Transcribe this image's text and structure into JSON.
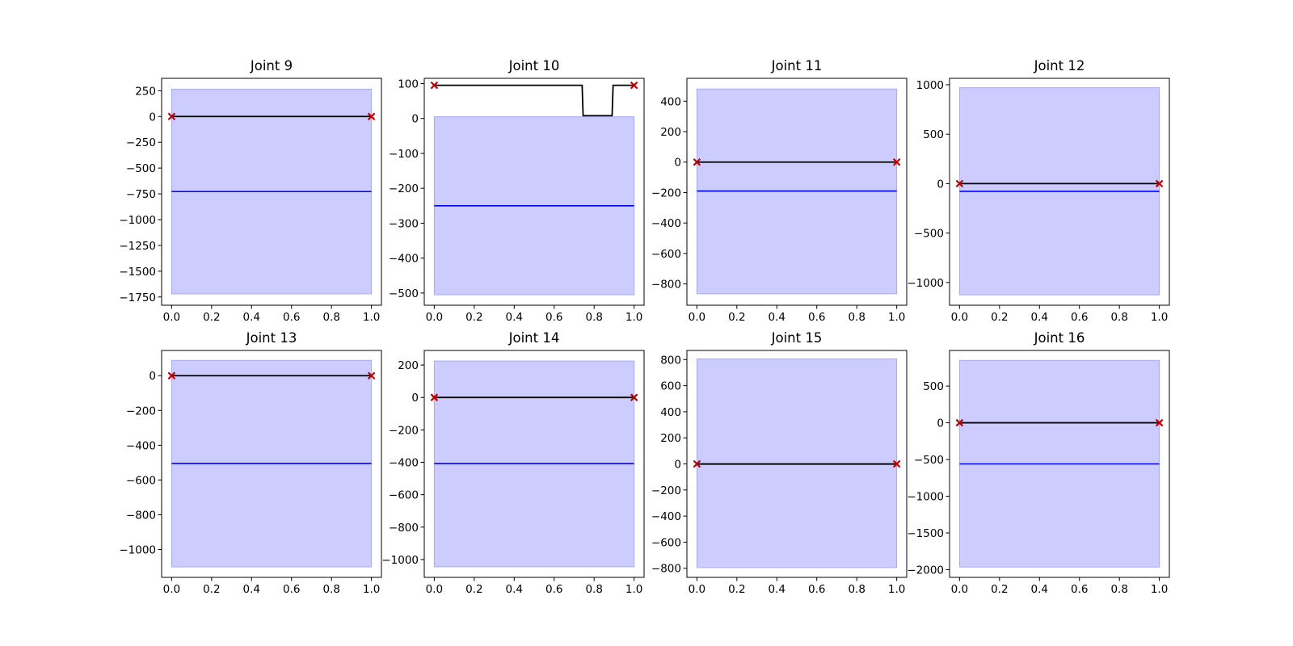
{
  "colors": {
    "band_fill": "#ccccff",
    "band_edge": "#aaaaf5",
    "mean_line": "#0000ff",
    "trajectory_line": "#000000",
    "endpoint_marker": "#d62728",
    "endpoint_marker_edge": "#c00000"
  },
  "chart_data": [
    {
      "type": "line",
      "title": "Joint 9",
      "xlim": [
        -0.05,
        1.05
      ],
      "ylim": [
        -1830,
        370
      ],
      "xticks": [
        0.0,
        0.2,
        0.4,
        0.6,
        0.8,
        1.0
      ],
      "xtick_labels": [
        "0.0",
        "0.2",
        "0.4",
        "0.6",
        "0.8",
        "1.0"
      ],
      "yticks": [
        250,
        0,
        -250,
        -500,
        -750,
        -1000,
        -1250,
        -1500,
        -1750
      ],
      "ytick_labels": [
        "250",
        "0",
        "−250",
        "−500",
        "−750",
        "−1000",
        "−1250",
        "−1500",
        "−1750"
      ],
      "band": {
        "x": [
          0,
          1
        ],
        "lower": -1720,
        "upper": 265
      },
      "mean": {
        "x": [
          0,
          1
        ],
        "y": [
          -728,
          -728
        ]
      },
      "trajectory": {
        "x": [
          0,
          1
        ],
        "y": [
          0,
          0
        ]
      },
      "endpoints": {
        "x": [
          0,
          1
        ],
        "y": [
          0,
          0
        ]
      }
    },
    {
      "type": "line",
      "title": "Joint 10",
      "xlim": [
        -0.05,
        1.05
      ],
      "ylim": [
        -535,
        115
      ],
      "xticks": [
        0.0,
        0.2,
        0.4,
        0.6,
        0.8,
        1.0
      ],
      "xtick_labels": [
        "0.0",
        "0.2",
        "0.4",
        "0.6",
        "0.8",
        "1.0"
      ],
      "yticks": [
        100,
        0,
        -100,
        -200,
        -300,
        -400,
        -500
      ],
      "ytick_labels": [
        "100",
        "0",
        "−100",
        "−200",
        "−300",
        "−400",
        "−500"
      ],
      "band": {
        "x": [
          0,
          1
        ],
        "lower": -505,
        "upper": 5
      },
      "mean": {
        "x": [
          0,
          1
        ],
        "y": [
          -250,
          -250
        ]
      },
      "trajectory": {
        "x": [
          0,
          0.74,
          0.745,
          0.89,
          0.895,
          1
        ],
        "y": [
          95,
          95,
          8,
          8,
          95,
          95
        ]
      },
      "endpoints": {
        "x": [
          0,
          1
        ],
        "y": [
          95,
          95
        ]
      }
    },
    {
      "type": "line",
      "title": "Joint 11",
      "xlim": [
        -0.05,
        1.05
      ],
      "ylim": [
        -940,
        550
      ],
      "xticks": [
        0.0,
        0.2,
        0.4,
        0.6,
        0.8,
        1.0
      ],
      "xtick_labels": [
        "0.0",
        "0.2",
        "0.4",
        "0.6",
        "0.8",
        "1.0"
      ],
      "yticks": [
        400,
        200,
        0,
        -200,
        -400,
        -600,
        -800
      ],
      "ytick_labels": [
        "400",
        "200",
        "0",
        "−200",
        "−400",
        "−600",
        "−800"
      ],
      "band": {
        "x": [
          0,
          1
        ],
        "lower": -865,
        "upper": 480
      },
      "mean": {
        "x": [
          0,
          1
        ],
        "y": [
          -190,
          -190
        ]
      },
      "trajectory": {
        "x": [
          0,
          1
        ],
        "y": [
          0,
          0
        ]
      },
      "endpoints": {
        "x": [
          0,
          1
        ],
        "y": [
          0,
          0
        ]
      }
    },
    {
      "type": "line",
      "title": "Joint 12",
      "xlim": [
        -0.05,
        1.05
      ],
      "ylim": [
        -1230,
        1065
      ],
      "xticks": [
        0.0,
        0.2,
        0.4,
        0.6,
        0.8,
        1.0
      ],
      "xtick_labels": [
        "0.0",
        "0.2",
        "0.4",
        "0.6",
        "0.8",
        "1.0"
      ],
      "yticks": [
        1000,
        500,
        0,
        -500,
        -1000
      ],
      "ytick_labels": [
        "1000",
        "500",
        "0",
        "−500",
        "−1000"
      ],
      "band": {
        "x": [
          0,
          1
        ],
        "lower": -1125,
        "upper": 970
      },
      "mean": {
        "x": [
          0,
          1
        ],
        "y": [
          -78,
          -78
        ]
      },
      "trajectory": {
        "x": [
          0,
          1
        ],
        "y": [
          0,
          0
        ]
      },
      "endpoints": {
        "x": [
          0,
          1
        ],
        "y": [
          0,
          0
        ]
      }
    },
    {
      "type": "line",
      "title": "Joint 13",
      "xlim": [
        -0.05,
        1.05
      ],
      "ylim": [
        -1160,
        145
      ],
      "xticks": [
        0.0,
        0.2,
        0.4,
        0.6,
        0.8,
        1.0
      ],
      "xtick_labels": [
        "0.0",
        "0.2",
        "0.4",
        "0.6",
        "0.8",
        "1.0"
      ],
      "yticks": [
        0,
        -200,
        -400,
        -600,
        -800,
        -1000
      ],
      "ytick_labels": [
        "0",
        "−200",
        "−400",
        "−600",
        "−800",
        "−1000"
      ],
      "band": {
        "x": [
          0,
          1
        ],
        "lower": -1100,
        "upper": 88
      },
      "mean": {
        "x": [
          0,
          1
        ],
        "y": [
          -505,
          -505
        ]
      },
      "trajectory": {
        "x": [
          0,
          1
        ],
        "y": [
          0,
          0
        ]
      },
      "endpoints": {
        "x": [
          0,
          1
        ],
        "y": [
          0,
          0
        ]
      }
    },
    {
      "type": "line",
      "title": "Joint 14",
      "xlim": [
        -0.05,
        1.05
      ],
      "ylim": [
        -1110,
        290
      ],
      "xticks": [
        0.0,
        0.2,
        0.4,
        0.6,
        0.8,
        1.0
      ],
      "xtick_labels": [
        "0.0",
        "0.2",
        "0.4",
        "0.6",
        "0.8",
        "1.0"
      ],
      "yticks": [
        200,
        0,
        -200,
        -400,
        -600,
        -800,
        -1000
      ],
      "ytick_labels": [
        "200",
        "0",
        "−200",
        "−400",
        "−600",
        "−800",
        "−1000"
      ],
      "band": {
        "x": [
          0,
          1
        ],
        "lower": -1045,
        "upper": 225
      },
      "mean": {
        "x": [
          0,
          1
        ],
        "y": [
          -408,
          -408
        ]
      },
      "trajectory": {
        "x": [
          0,
          1
        ],
        "y": [
          0,
          0
        ]
      },
      "endpoints": {
        "x": [
          0,
          1
        ],
        "y": [
          0,
          0
        ]
      }
    },
    {
      "type": "line",
      "title": "Joint 15",
      "xlim": [
        -0.05,
        1.05
      ],
      "ylim": [
        -870,
        870
      ],
      "xticks": [
        0.0,
        0.2,
        0.4,
        0.6,
        0.8,
        1.0
      ],
      "xtick_labels": [
        "0.0",
        "0.2",
        "0.4",
        "0.6",
        "0.8",
        "1.0"
      ],
      "yticks": [
        800,
        600,
        400,
        200,
        0,
        -200,
        -400,
        -600,
        -800
      ],
      "ytick_labels": [
        "800",
        "600",
        "400",
        "200",
        "0",
        "−200",
        "−400",
        "−600",
        "−800"
      ],
      "band": {
        "x": [
          0,
          1
        ],
        "lower": -795,
        "upper": 805
      },
      "mean": {
        "x": [
          0,
          1
        ],
        "y": [
          -2,
          -2
        ]
      },
      "trajectory": {
        "x": [
          0,
          1
        ],
        "y": [
          0,
          0
        ]
      },
      "endpoints": {
        "x": [
          0,
          1
        ],
        "y": [
          0,
          0
        ]
      }
    },
    {
      "type": "line",
      "title": "Joint 16",
      "xlim": [
        -0.05,
        1.05
      ],
      "ylim": [
        -2105,
        985
      ],
      "xticks": [
        0.0,
        0.2,
        0.4,
        0.6,
        0.8,
        1.0
      ],
      "xtick_labels": [
        "0.0",
        "0.2",
        "0.4",
        "0.6",
        "0.8",
        "1.0"
      ],
      "yticks": [
        500,
        0,
        -500,
        -1000,
        -1500,
        -2000
      ],
      "ytick_labels": [
        "500",
        "0",
        "−500",
        "−1000",
        "−1500",
        "−2000"
      ],
      "band": {
        "x": [
          0,
          1
        ],
        "lower": -1965,
        "upper": 850
      },
      "mean": {
        "x": [
          0,
          1
        ],
        "y": [
          -560,
          -560
        ]
      },
      "trajectory": {
        "x": [
          0,
          1
        ],
        "y": [
          0,
          0
        ]
      },
      "endpoints": {
        "x": [
          0,
          1
        ],
        "y": [
          0,
          0
        ]
      }
    }
  ]
}
